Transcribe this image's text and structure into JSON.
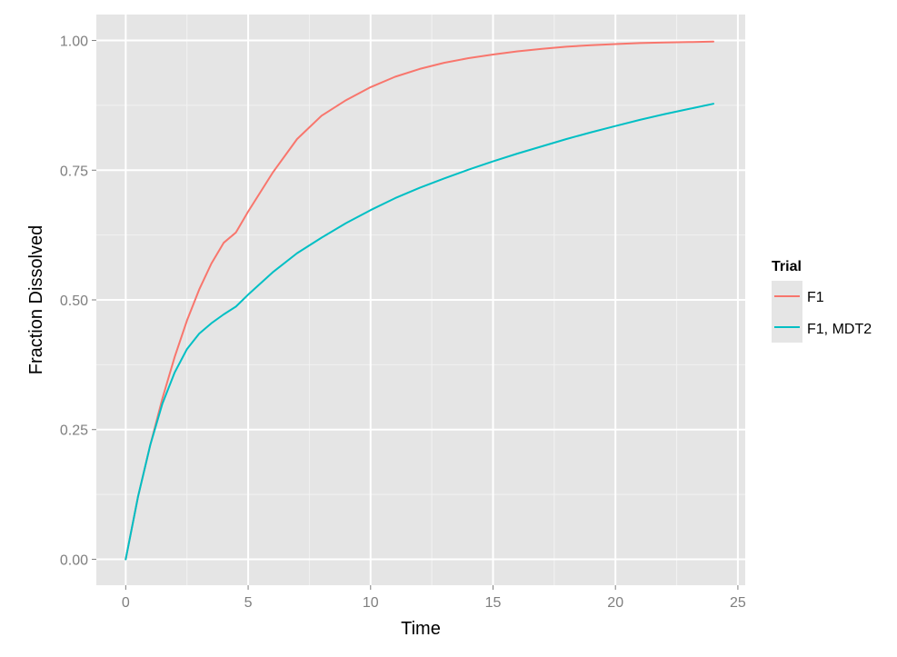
{
  "chart_data": {
    "type": "line",
    "title": "",
    "xlabel": "Time",
    "ylabel": "Fraction Dissolved",
    "xlim": [
      -1.2,
      25.3
    ],
    "ylim": [
      -0.05,
      1.05
    ],
    "x_ticks": [
      0,
      5,
      10,
      15,
      20,
      25
    ],
    "x_tick_labels": [
      "0",
      "5",
      "10",
      "15",
      "20",
      "25"
    ],
    "y_ticks": [
      0,
      0.25,
      0.5,
      0.75,
      1.0
    ],
    "y_tick_labels": [
      "0.00",
      "0.25",
      "0.50",
      "0.75",
      "1.00"
    ],
    "grid": true,
    "legend": {
      "title": "Trial",
      "position": "right"
    },
    "series": [
      {
        "name": "F1",
        "color": "#F8766D",
        "x": [
          0,
          0.5,
          1,
          1.5,
          2,
          2.5,
          3,
          3.5,
          4,
          4.5,
          5,
          6,
          7,
          8,
          9,
          10,
          11,
          12,
          13,
          14,
          15,
          16,
          17,
          18,
          19,
          20,
          21,
          22,
          23,
          24
        ],
        "y": [
          0,
          0.12,
          0.22,
          0.31,
          0.39,
          0.46,
          0.52,
          0.57,
          0.61,
          0.63,
          0.67,
          0.745,
          0.81,
          0.855,
          0.885,
          0.91,
          0.93,
          0.945,
          0.957,
          0.966,
          0.973,
          0.979,
          0.984,
          0.988,
          0.991,
          0.993,
          0.995,
          0.996,
          0.997,
          0.998
        ]
      },
      {
        "name": "F1, MDT2",
        "color": "#00BFC4",
        "x": [
          0,
          0.5,
          1,
          1.5,
          2,
          2.5,
          3,
          3.5,
          4,
          4.5,
          5,
          6,
          7,
          8,
          9,
          10,
          11,
          12,
          13,
          14,
          15,
          16,
          17,
          18,
          19,
          20,
          21,
          22,
          23,
          24
        ],
        "y": [
          0,
          0.12,
          0.22,
          0.3,
          0.36,
          0.405,
          0.435,
          0.455,
          0.472,
          0.487,
          0.51,
          0.553,
          0.59,
          0.62,
          0.648,
          0.673,
          0.696,
          0.716,
          0.734,
          0.751,
          0.767,
          0.782,
          0.796,
          0.81,
          0.823,
          0.835,
          0.847,
          0.858,
          0.868,
          0.878
        ]
      }
    ]
  }
}
